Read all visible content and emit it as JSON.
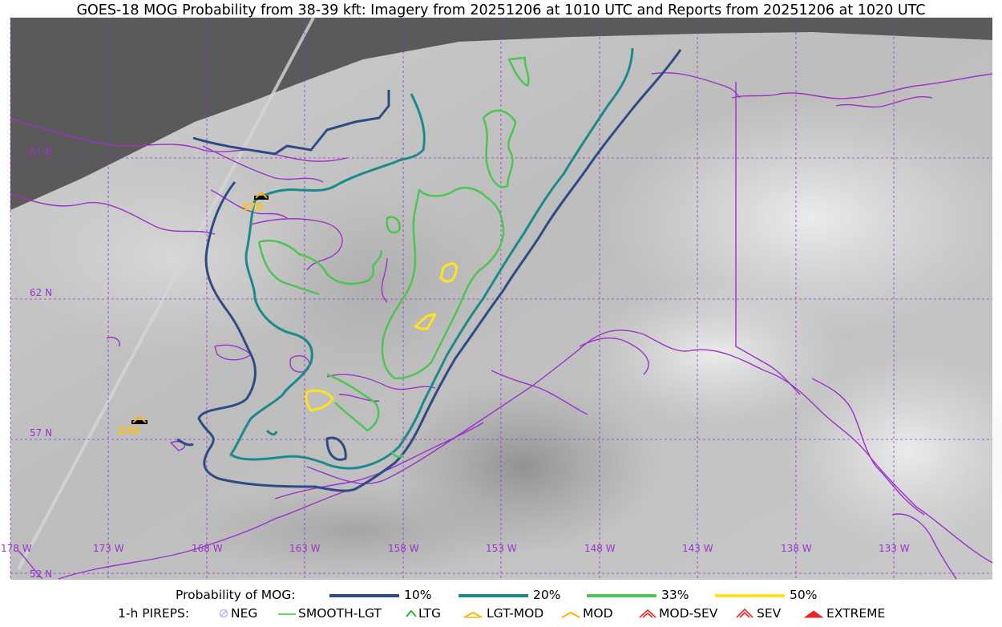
{
  "title": "GOES-18 MOG Probability from 38-39 kft: Imagery from 20251206 at 1010 UTC and Reports from 20251206 at 1020 UTC",
  "map": {
    "lat_labels": [
      "61 N",
      "62 N",
      "57 N",
      "52 N"
    ],
    "lon_labels": [
      "178 W",
      "173 W",
      "168 W",
      "163 W",
      "158 W",
      "153 W",
      "148 W",
      "143 W",
      "138 W",
      "133 W"
    ],
    "pireps": [
      {
        "type": "MOD",
        "altitude": "370"
      },
      {
        "type": "MOD",
        "altitude": "370"
      }
    ]
  },
  "legend": {
    "prob_title": "Probability of MOG:",
    "prob_levels": [
      {
        "label": "10%",
        "color": "#2e4a87"
      },
      {
        "label": "20%",
        "color": "#1b8a8a"
      },
      {
        "label": "33%",
        "color": "#4cc552"
      },
      {
        "label": "50%",
        "color": "#ffe41a"
      }
    ],
    "pirep_title": "1-h PIREPS:",
    "pirep_types": [
      {
        "label": "NEG",
        "icon": "neg-icon",
        "color": "#b9b9f5"
      },
      {
        "label": "SMOOTH-LGT",
        "icon": "smooth-lgt-icon",
        "color": "#33cc33"
      },
      {
        "label": "LTG",
        "icon": "ltg-icon",
        "color": "#22bb22"
      },
      {
        "label": "LGT-MOD",
        "icon": "lgt-mod-icon",
        "color": "#ffb000"
      },
      {
        "label": "MOD",
        "icon": "mod-icon",
        "color": "#ffb000"
      },
      {
        "label": "MOD-SEV",
        "icon": "mod-sev-icon",
        "color": "#ee2222"
      },
      {
        "label": "SEV",
        "icon": "sev-icon",
        "color": "#ee2222"
      },
      {
        "label": "EXTREME",
        "icon": "extreme-icon",
        "color": "#ee2222"
      }
    ]
  }
}
